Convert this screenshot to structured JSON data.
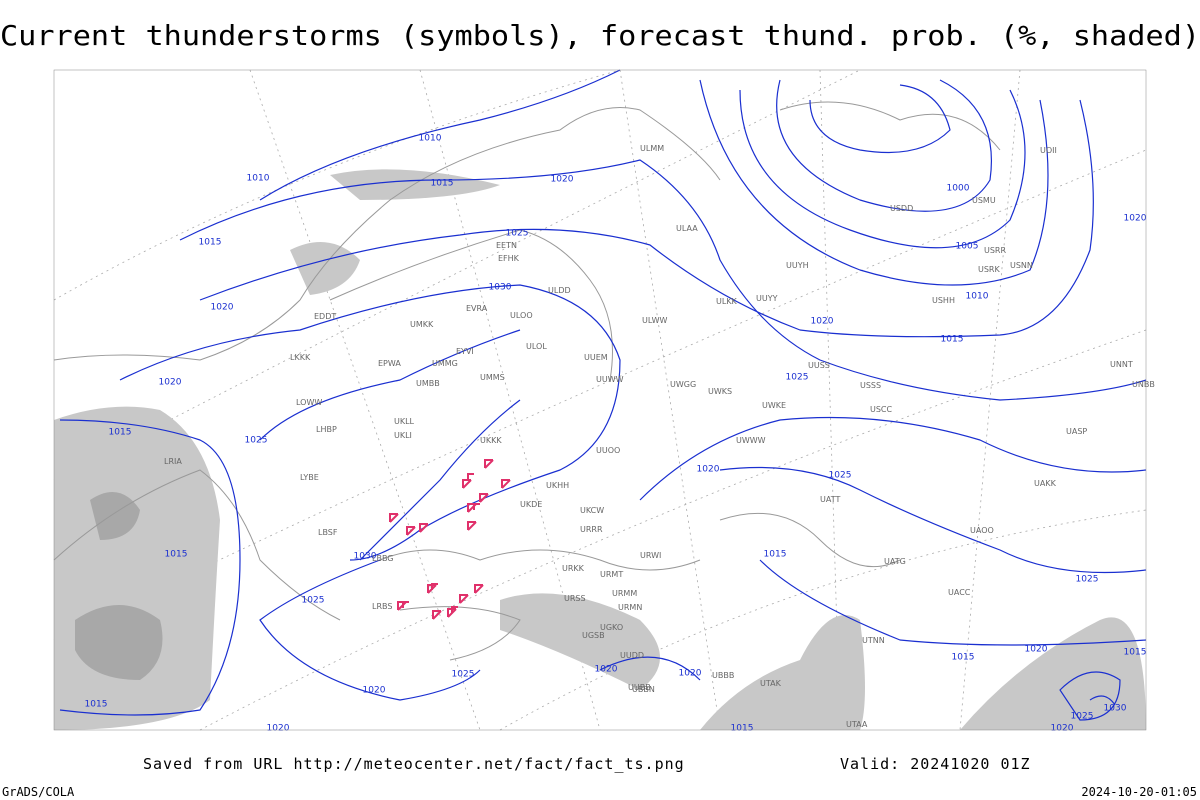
{
  "header": {
    "title": "Current thunderstorms (symbols), forecast thund. prob. (%, shaded)"
  },
  "footer": {
    "source": "Saved from URL http://meteocenter.net/fact/fact_ts.png",
    "valid": "Valid: 20241020 01Z",
    "credit": "GrADS/COLA",
    "timestamp": "2024-10-20-01:05"
  },
  "map": {
    "isobar_labels": [
      "1010",
      "1010",
      "1015",
      "1020",
      "1015",
      "1025",
      "1030",
      "1020",
      "1020",
      "1015",
      "1025",
      "1015",
      "1030",
      "1025",
      "1025",
      "1020",
      "1015",
      "1020",
      "1020",
      "1020",
      "1015",
      "1015",
      "1020",
      "1025",
      "1025",
      "1020",
      "1015",
      "1010",
      "1005",
      "1000",
      "1020",
      "1015",
      "1025",
      "1020",
      "1025",
      "1030",
      "1015",
      "1020"
    ],
    "stations": [
      "ULMM",
      "ULAA",
      "ULDD",
      "UUYY",
      "ULKK",
      "ULWW",
      "UUYH",
      "UUEM",
      "UUWW",
      "UWGG",
      "UWKS",
      "UWKE",
      "UWWW",
      "UUOO",
      "UKKK",
      "UKHH",
      "UKDE",
      "UKCW",
      "URRR",
      "URWI",
      "URKK",
      "URMT",
      "URMM",
      "URMN",
      "URSS",
      "UGSB",
      "UGKO",
      "UUDD",
      "UUBB",
      "ULOL",
      "UMMG",
      "UMMS",
      "UMBB",
      "UKLL",
      "UKLI",
      "LKKK",
      "EPWA",
      "EYVI",
      "EVRA",
      "EETN",
      "EFHK",
      "UMKK",
      "EDDT",
      "LOWW",
      "LHBP",
      "LYBE",
      "LBSF",
      "LBBG",
      "LRBS",
      "LRIA",
      "UATT",
      "UAKK",
      "UACC",
      "UASP",
      "UAOO",
      "UATG",
      "UTAK",
      "UTAA",
      "UTNN",
      "UBBN",
      "UBBB",
      "USSS",
      "USCC",
      "UNNT",
      "UNBB",
      "USRR",
      "USNN",
      "USRK",
      "USHH",
      "UUSS",
      "ULOO",
      "USMU",
      "USDD",
      "UOII"
    ]
  }
}
